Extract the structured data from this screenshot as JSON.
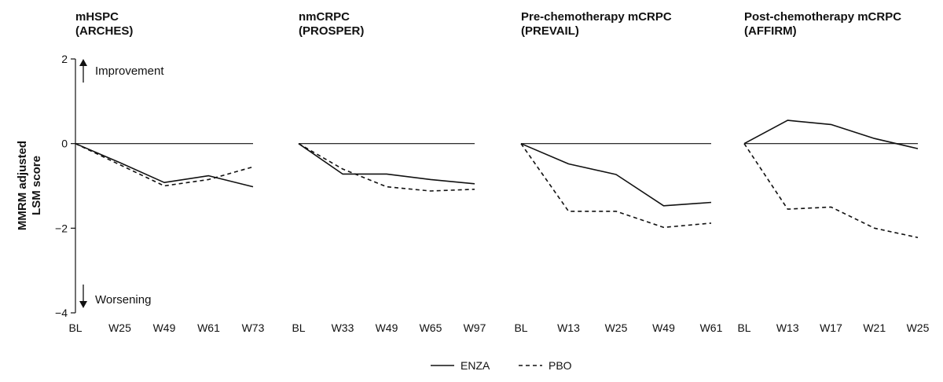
{
  "chart_data": {
    "type": "line",
    "ylabel": "MMRM adjusted LSM score",
    "ylim": [
      -4,
      2
    ],
    "yticks": [
      2,
      0,
      -2,
      -4
    ],
    "ytick_labels": [
      "2",
      "0",
      "−2",
      "−4"
    ],
    "annotations": {
      "up": "Improvement",
      "down": "Worsening"
    },
    "legend": {
      "position": "bottom-center",
      "entries": [
        "ENZA",
        "PBO"
      ]
    },
    "series_styles": {
      "ENZA": "solid",
      "PBO": "dashed"
    },
    "colors": {
      "line": "#111111"
    },
    "panels": [
      {
        "title_line1": "mHSPC",
        "title_line2": "(ARCHES)",
        "categories": [
          "BL",
          "W25",
          "W49",
          "W61",
          "W73"
        ],
        "series": [
          {
            "name": "ENZA",
            "values": [
              0,
              -0.45,
              -0.92,
              -0.76,
              -1.02
            ]
          },
          {
            "name": "PBO",
            "values": [
              0,
              -0.5,
              -1.0,
              -0.85,
              -0.55
            ]
          }
        ]
      },
      {
        "title_line1": "nmCRPC",
        "title_line2": "(PROSPER)",
        "categories": [
          "BL",
          "W33",
          "W49",
          "W65",
          "W97"
        ],
        "series": [
          {
            "name": "ENZA",
            "values": [
              0,
              -0.72,
              -0.72,
              -0.85,
              -0.95
            ]
          },
          {
            "name": "PBO",
            "values": [
              0,
              -0.6,
              -1.02,
              -1.12,
              -1.08
            ]
          }
        ]
      },
      {
        "title_line1": "Pre-chemotherapy mCRPC",
        "title_line2": "(PREVAIL)",
        "categories": [
          "BL",
          "W13",
          "W25",
          "W49",
          "W61"
        ],
        "series": [
          {
            "name": "ENZA",
            "values": [
              0,
              -0.48,
              -0.73,
              -1.47,
              -1.39
            ]
          },
          {
            "name": "PBO",
            "values": [
              0,
              -1.6,
              -1.6,
              -1.98,
              -1.88
            ]
          }
        ]
      },
      {
        "title_line1": "Post-chemotherapy mCRPC",
        "title_line2": "(AFFIRM)",
        "categories": [
          "BL",
          "W13",
          "W17",
          "W21",
          "W25"
        ],
        "series": [
          {
            "name": "ENZA",
            "values": [
              0,
              0.55,
              0.45,
              0.12,
              -0.12
            ]
          },
          {
            "name": "PBO",
            "values": [
              0,
              -1.55,
              -1.5,
              -2.0,
              -2.22
            ]
          }
        ]
      }
    ]
  }
}
